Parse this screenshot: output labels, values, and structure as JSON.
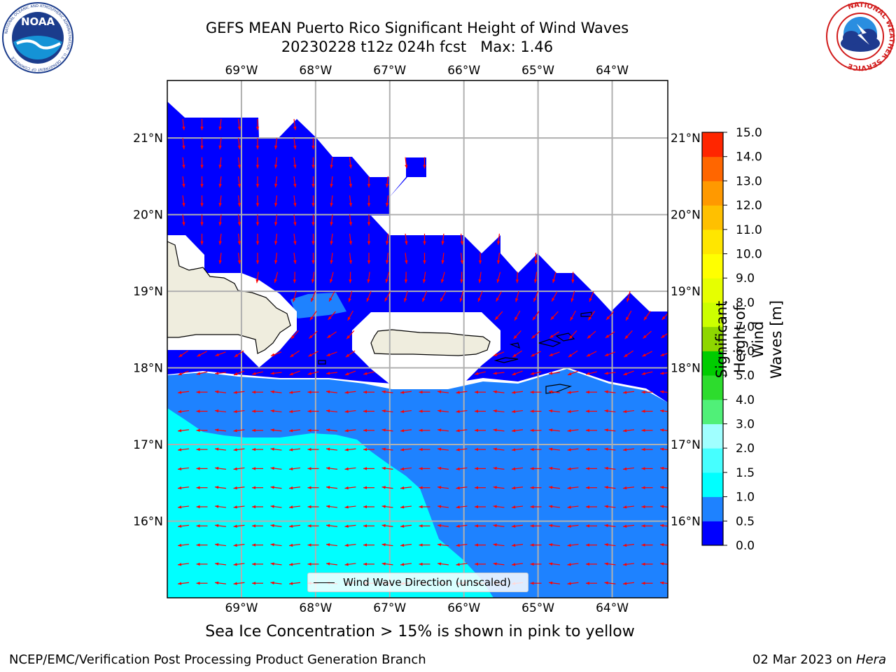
{
  "title": {
    "line1": "GEFS MEAN Puerto Rico Significant Height of Wind Waves",
    "line2": "20230228 t12z 024h fcst   Max: 1.46"
  },
  "map": {
    "lon_range": [
      -70.0,
      -63.25
    ],
    "lat_range": [
      15.0,
      21.75
    ],
    "lon_ticks": [
      -69,
      -68,
      -67,
      -66,
      -65,
      -64
    ],
    "lat_ticks": [
      16,
      17,
      18,
      19,
      20,
      21
    ],
    "lon_labels": [
      "69°W",
      "68°W",
      "67°W",
      "66°W",
      "65°W",
      "64°W"
    ],
    "lat_labels": [
      "16°N",
      "17°N",
      "18°N",
      "19°N",
      "20°N",
      "21°N"
    ],
    "gridlines": true,
    "land_color": "#efedde",
    "arrow_color": "#ff0000"
  },
  "legend": {
    "label": "Wind Wave Direction (unscaled)"
  },
  "colorbar": {
    "label": "Significant Height of Wind Waves [m]",
    "levels": [
      "0.0",
      "0.5",
      "1.0",
      "1.5",
      "2.0",
      "3.0",
      "4.0",
      "5.0",
      "6.0",
      "7.0",
      "8.0",
      "9.0",
      "10.0",
      "11.0",
      "12.0",
      "13.0",
      "14.0",
      "15.0"
    ],
    "colors": [
      "#0000ff",
      "#1e82ff",
      "#00ffff",
      "#46ffff",
      "#a0ffff",
      "#50f078",
      "#2ddc2d",
      "#00cc00",
      "#8ed600",
      "#ccff00",
      "#e6ff00",
      "#ffff00",
      "#ffe600",
      "#ffc000",
      "#ff9900",
      "#ff6600",
      "#ff2600"
    ]
  },
  "note": "Sea Ice Concentration > 15% is shown in pink to yellow",
  "footer": {
    "left": "NCEP/EMC/Verification Post Processing Product Generation Branch",
    "right_prefix": "02 Mar 2023 on ",
    "right_host": "Hera"
  },
  "logos": {
    "noaa_text": "NOAA",
    "noaa_ring": "NATIONAL OCEANIC AND ATMOSPHERIC ADMINISTRATION · U.S. DEPARTMENT OF COMMERCE",
    "nws_ring": "NATIONAL WEATHER SERVICE"
  }
}
